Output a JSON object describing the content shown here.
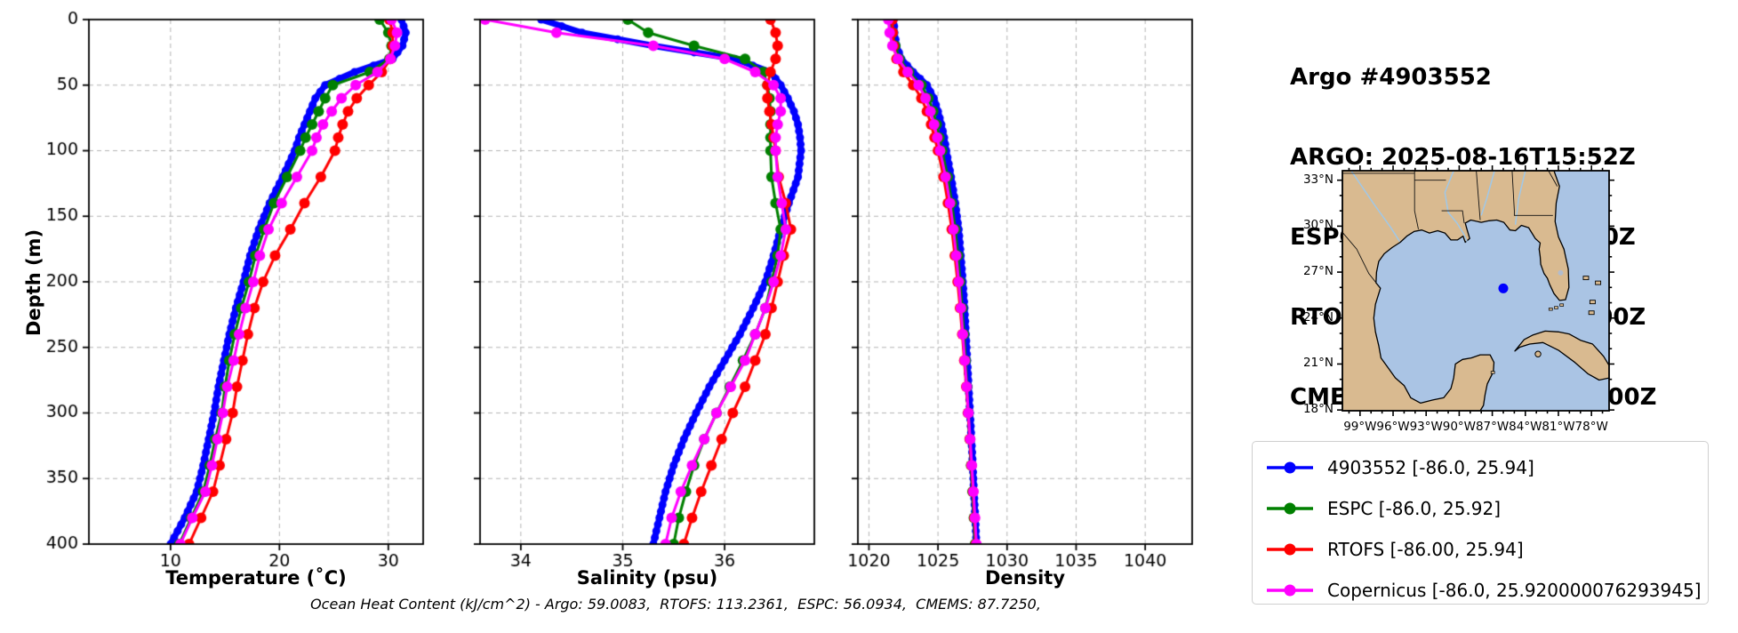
{
  "header": {
    "lines": [
      "Argo #4903552",
      "ARGO: 2025-08-16T15:52Z",
      "ESPC : 2025-08-16T15:00Z",
      "RTOFS: 2025-08-16T18:00Z",
      "CMEMS: 2025-08-16T18:00Z"
    ]
  },
  "axes": {
    "ylabel": "Depth (m)",
    "ylim": [
      0,
      400
    ],
    "yticks": [
      0,
      50,
      100,
      150,
      200,
      250,
      300,
      350,
      400
    ]
  },
  "caption": "Ocean Heat Content (kJ/cm^2) - Argo: 59.0083,  RTOFS: 113.2361,  ESPC: 56.0934,  CMEMS: 87.7250,",
  "colors": {
    "argo": "#0000ff",
    "espc": "#008000",
    "rtofs": "#ff0000",
    "cmems": "#ff00ff",
    "land": "#d9ba90",
    "ocean": "#aac4e4",
    "river": "#a0c8e8",
    "grid": "#b3b3b3"
  },
  "chart_data": [
    {
      "type": "line",
      "title": "Temperature (˚C)",
      "xlabel": "Temperature (˚C)",
      "ylabel": "Depth (m)",
      "xlim": [
        2.5,
        33.2
      ],
      "xticks": [
        10,
        20,
        30
      ],
      "grid": true,
      "depths": [
        0,
        10,
        20,
        30,
        40,
        50,
        60,
        70,
        80,
        90,
        100,
        120,
        140,
        160,
        180,
        200,
        220,
        240,
        260,
        280,
        300,
        320,
        340,
        360,
        380,
        400
      ],
      "series": [
        {
          "name": "4903552",
          "color": "#0000ff",
          "style": "thick",
          "values": [
            31.2,
            31.6,
            31.3,
            30.4,
            26.9,
            24.2,
            23.3,
            22.8,
            22.3,
            21.8,
            21.4,
            20.3,
            19.1,
            18.1,
            17.3,
            16.7,
            16.0,
            15.4,
            14.9,
            14.4,
            14.0,
            13.5,
            13.0,
            12.4,
            11.3,
            10.0
          ]
        },
        {
          "name": "ESPC",
          "color": "#008000",
          "style": "model",
          "values": [
            29.2,
            30.0,
            30.3,
            30.1,
            28.3,
            24.9,
            24.2,
            23.6,
            23.0,
            22.4,
            21.9,
            20.7,
            19.5,
            18.6,
            17.8,
            17.2,
            16.5,
            15.9,
            15.4,
            15.0,
            14.7,
            14.1,
            13.6,
            13.0,
            11.9,
            10.8
          ]
        },
        {
          "name": "RTOFS",
          "color": "#ff0000",
          "style": "model",
          "values": [
            30.1,
            30.4,
            30.4,
            30.2,
            29.4,
            28.2,
            27.1,
            26.3,
            25.8,
            25.4,
            25.1,
            23.8,
            22.3,
            21.0,
            19.6,
            18.5,
            17.7,
            17.1,
            16.6,
            16.1,
            15.7,
            15.1,
            14.5,
            13.9,
            12.8,
            11.7
          ]
        },
        {
          "name": "Copernicus",
          "color": "#ff00ff",
          "style": "model",
          "values": [
            30.3,
            30.8,
            30.6,
            30.2,
            29.0,
            27.0,
            25.7,
            24.8,
            24.0,
            23.4,
            23.0,
            21.6,
            20.2,
            19.0,
            18.2,
            17.6,
            16.9,
            16.3,
            15.8,
            15.2,
            14.8,
            14.3,
            13.8,
            13.2,
            12.0,
            10.9
          ]
        }
      ]
    },
    {
      "type": "line",
      "title": "Salinity (psu)",
      "xlabel": "Salinity (psu)",
      "ylabel": "Depth (m)",
      "xlim": [
        33.6,
        36.88
      ],
      "xticks": [
        34,
        35,
        36
      ],
      "grid": true,
      "depths": [
        0,
        10,
        20,
        30,
        40,
        50,
        60,
        70,
        80,
        90,
        100,
        120,
        140,
        160,
        180,
        200,
        220,
        240,
        260,
        280,
        300,
        320,
        340,
        360,
        380,
        400
      ],
      "series": [
        {
          "name": "4903552",
          "color": "#0000ff",
          "style": "thick",
          "values": [
            34.2,
            34.6,
            35.3,
            36.1,
            36.45,
            36.55,
            36.62,
            36.68,
            36.72,
            36.74,
            36.75,
            36.72,
            36.63,
            36.55,
            36.48,
            36.4,
            36.28,
            36.15,
            36.0,
            35.85,
            35.72,
            35.6,
            35.5,
            35.42,
            35.36,
            35.3
          ]
        },
        {
          "name": "ESPC",
          "color": "#008000",
          "style": "model",
          "values": [
            35.05,
            35.25,
            35.7,
            36.2,
            36.38,
            36.42,
            36.44,
            36.45,
            36.45,
            36.45,
            36.45,
            36.46,
            36.5,
            36.55,
            36.52,
            36.46,
            36.4,
            36.3,
            36.18,
            36.05,
            35.92,
            35.8,
            35.7,
            35.62,
            35.55,
            35.5
          ]
        },
        {
          "name": "RTOFS",
          "color": "#ff0000",
          "style": "model",
          "values": [
            36.45,
            36.5,
            36.52,
            36.5,
            36.45,
            36.42,
            36.42,
            36.44,
            36.46,
            36.48,
            36.5,
            36.53,
            36.6,
            36.65,
            36.58,
            36.52,
            36.46,
            36.4,
            36.3,
            36.2,
            36.08,
            35.97,
            35.87,
            35.77,
            35.68,
            35.6
          ]
        },
        {
          "name": "Copernicus",
          "color": "#ff00ff",
          "style": "model",
          "values": [
            33.65,
            34.35,
            35.3,
            36.0,
            36.3,
            36.48,
            36.55,
            36.55,
            36.52,
            36.5,
            36.5,
            36.52,
            36.56,
            36.6,
            36.55,
            36.48,
            36.4,
            36.3,
            36.2,
            36.06,
            35.92,
            35.8,
            35.68,
            35.57,
            35.48,
            35.42
          ]
        }
      ]
    },
    {
      "type": "line",
      "title": "Density",
      "xlabel": "Density",
      "ylabel": "Depth (m)",
      "xlim": [
        1019.2,
        1043.4
      ],
      "xticks": [
        1020,
        1025,
        1030,
        1035,
        1040
      ],
      "grid": true,
      "depths": [
        0,
        10,
        20,
        30,
        40,
        50,
        60,
        70,
        80,
        90,
        100,
        120,
        140,
        160,
        180,
        200,
        220,
        240,
        260,
        280,
        300,
        320,
        340,
        360,
        380,
        400
      ],
      "series": [
        {
          "name": "4903552",
          "color": "#0000ff",
          "style": "thick",
          "values": [
            1021.8,
            1021.85,
            1022.0,
            1022.35,
            1023.2,
            1024.2,
            1024.7,
            1025.0,
            1025.25,
            1025.45,
            1025.6,
            1025.95,
            1026.25,
            1026.5,
            1026.65,
            1026.8,
            1026.92,
            1027.02,
            1027.12,
            1027.22,
            1027.32,
            1027.42,
            1027.52,
            1027.6,
            1027.7,
            1027.78
          ]
        },
        {
          "name": "ESPC",
          "color": "#008000",
          "style": "model",
          "values": [
            1021.6,
            1021.7,
            1021.9,
            1022.2,
            1022.9,
            1023.8,
            1024.3,
            1024.65,
            1024.9,
            1025.1,
            1025.3,
            1025.7,
            1026.0,
            1026.25,
            1026.45,
            1026.6,
            1026.75,
            1026.88,
            1027.0,
            1027.1,
            1027.2,
            1027.3,
            1027.4,
            1027.5,
            1027.6,
            1027.68
          ]
        },
        {
          "name": "RTOFS",
          "color": "#ff0000",
          "style": "model",
          "values": [
            1021.7,
            1021.72,
            1021.8,
            1022.0,
            1022.5,
            1023.2,
            1023.8,
            1024.2,
            1024.5,
            1024.75,
            1025.0,
            1025.4,
            1025.72,
            1026.0,
            1026.22,
            1026.42,
            1026.6,
            1026.76,
            1026.9,
            1027.05,
            1027.18,
            1027.3,
            1027.42,
            1027.54,
            1027.64,
            1027.74
          ]
        },
        {
          "name": "Copernicus",
          "color": "#ff00ff",
          "style": "model",
          "values": [
            1021.4,
            1021.5,
            1021.7,
            1022.1,
            1022.8,
            1023.6,
            1024.1,
            1024.45,
            1024.72,
            1024.95,
            1025.15,
            1025.55,
            1025.87,
            1026.12,
            1026.32,
            1026.5,
            1026.66,
            1026.8,
            1026.94,
            1027.08,
            1027.2,
            1027.33,
            1027.45,
            1027.57,
            1027.68,
            1027.78
          ]
        }
      ]
    }
  ],
  "map": {
    "lat_labels": [
      "33°N",
      "30°N",
      "27°N",
      "24°N",
      "21°N",
      "18°N"
    ],
    "lat_ticks": [
      33,
      30,
      27,
      24,
      21,
      18
    ],
    "lon_labels": [
      "99°W",
      "96°W",
      "93°W",
      "90°W",
      "87°W",
      "84°W",
      "81°W",
      "78°W"
    ],
    "lon_ticks": [
      -99,
      -96,
      -93,
      -90,
      -87,
      -84,
      -81,
      -78
    ],
    "float": {
      "lon": -86.0,
      "lat": 25.94
    }
  },
  "legend": {
    "entries": [
      {
        "label": "4903552 [-86.0, 25.94]",
        "color": "#0000ff"
      },
      {
        "label": "ESPC [-86.0, 25.92]",
        "color": "#008000"
      },
      {
        "label": "RTOFS [-86.00, 25.94]",
        "color": "#ff0000"
      },
      {
        "label": "Copernicus [-86.0, 25.920000076293945]",
        "color": "#ff00ff"
      }
    ]
  }
}
